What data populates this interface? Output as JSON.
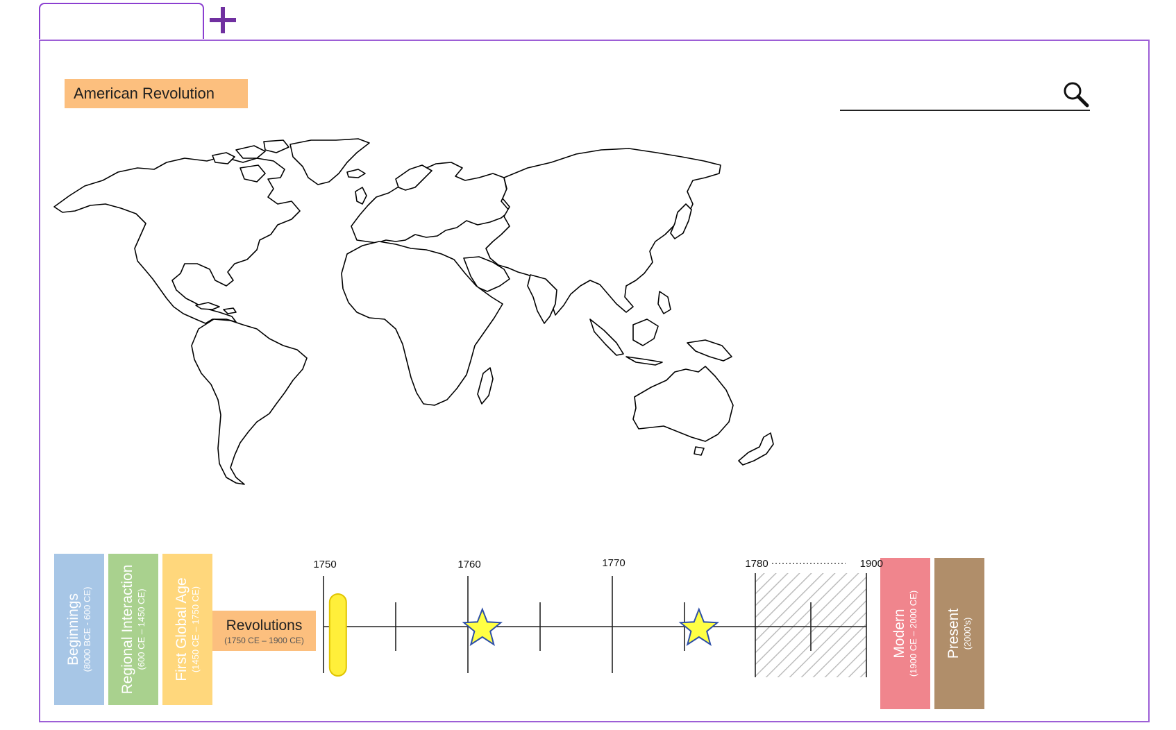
{
  "tab": {
    "label": ""
  },
  "topic": {
    "label": "American Revolution"
  },
  "search": {
    "value": "",
    "placeholder": ""
  },
  "eras": [
    {
      "name": "Beginnings",
      "range": "(8000 BCE - 600 CE)",
      "color": "#a7c6e6"
    },
    {
      "name": "Regional Interaction",
      "range": "(600 CE – 1450 CE)",
      "color": "#a9d18e"
    },
    {
      "name": "First Global Age",
      "range": "(1450 CE – 1750 CE)",
      "color": "#ffd77c"
    },
    {
      "name": "Revolutions",
      "range": "(1750 CE – 1900 CE)",
      "color": "#fcbf7e"
    },
    {
      "name": "Modern",
      "range": "(1900 CE – 2000 CE)",
      "color": "#f0858d"
    },
    {
      "name": "Present",
      "range": "(2000’s)",
      "color": "#b08e6a"
    }
  ],
  "timeline": {
    "labels": [
      "1750",
      "1760",
      "1770",
      "1780",
      "1900"
    ],
    "marker_year": 1751,
    "star_years": [
      1761,
      1776
    ]
  },
  "colors": {
    "accent": "#8b3fd0",
    "star": "#ffff44",
    "marker": "#ffef3a"
  }
}
